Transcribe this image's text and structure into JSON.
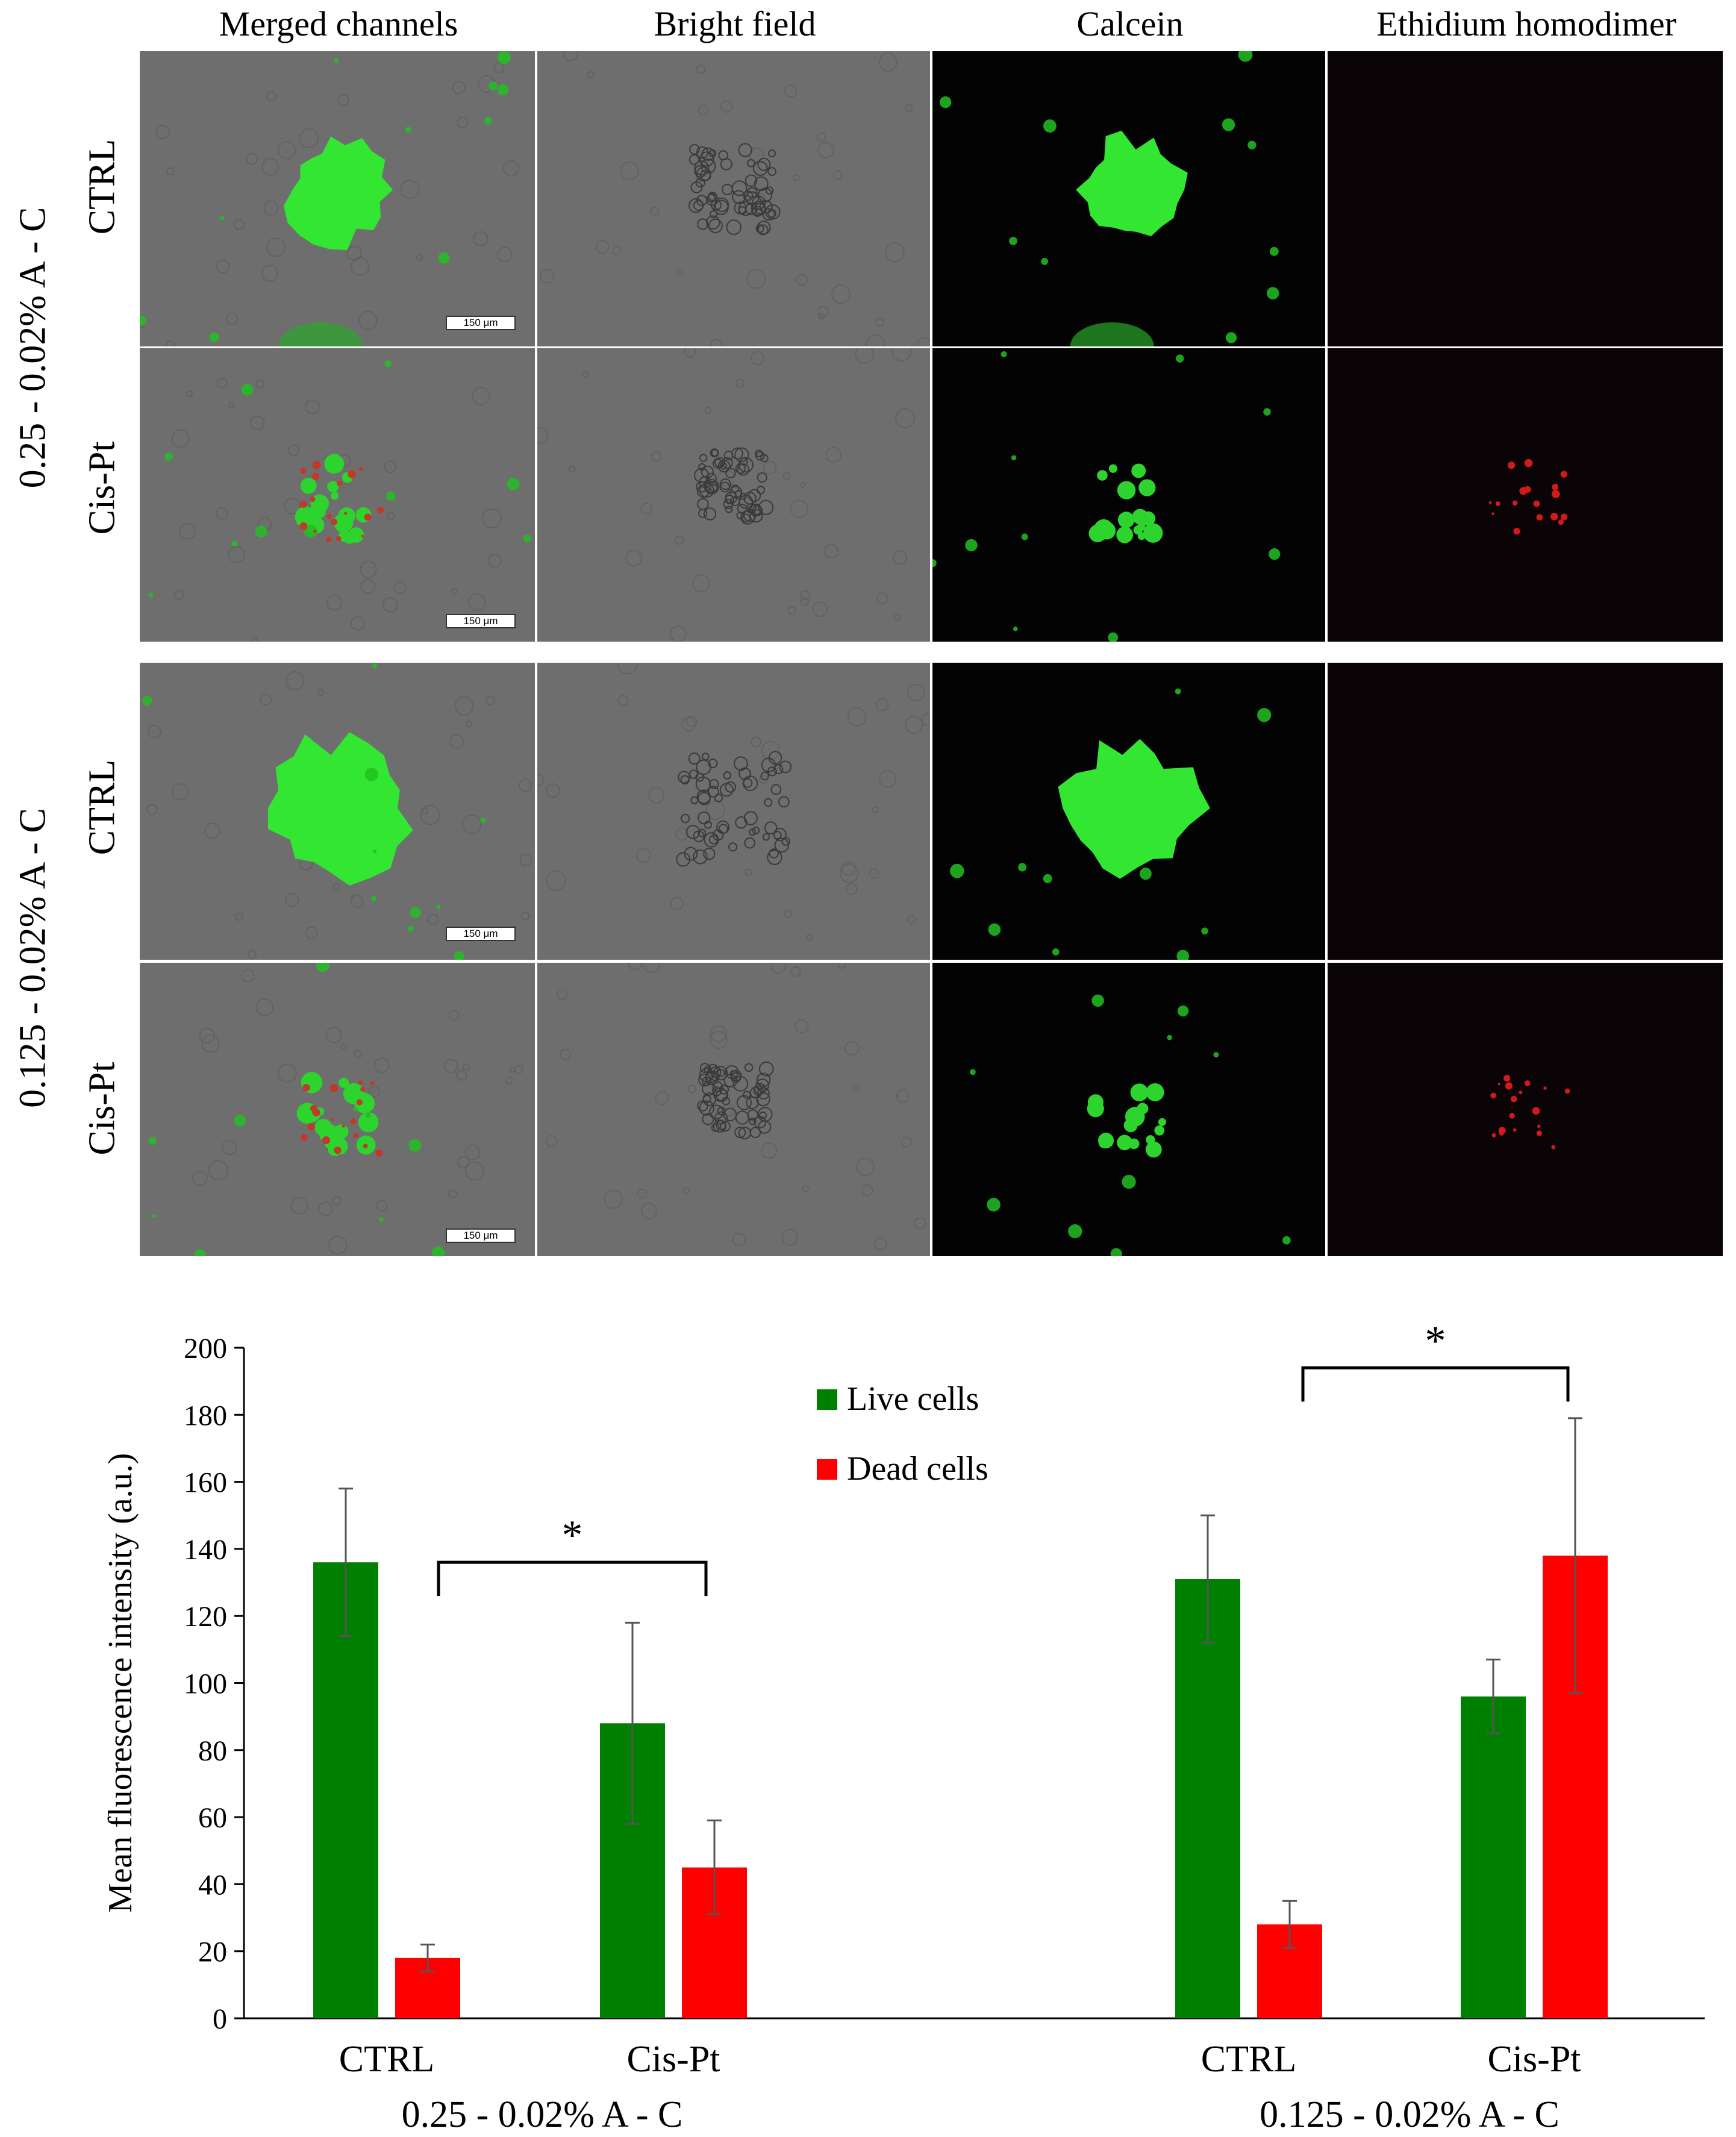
{
  "figure": {
    "column_headers": [
      "Merged channels",
      "Bright field",
      "Calcein",
      "Ethidium homodimer"
    ],
    "row_groups": [
      {
        "label": "0.25 - 0.02% A - C",
        "rows": [
          "CTRL",
          "Cis-Pt"
        ]
      },
      {
        "label": "0.125 - 0.02% A - C",
        "rows": [
          "CTRL",
          "Cis-Pt"
        ]
      }
    ],
    "scale_bar_label": "150 μm"
  },
  "chart_data": {
    "type": "bar",
    "ylabel": "Mean fluorescence intensity (a.u.)",
    "ylim": [
      0,
      200
    ],
    "yticks": [
      0,
      20,
      40,
      60,
      80,
      100,
      120,
      140,
      160,
      180,
      200
    ],
    "groups": [
      "0.25 - 0.02% A - C",
      "0.125 - 0.02% A - C"
    ],
    "categories": [
      "CTRL",
      "Cis-Pt",
      "CTRL",
      "Cis-Pt"
    ],
    "series": [
      {
        "name": "Live cells",
        "color": "#008000",
        "values": [
          136,
          88,
          131,
          96
        ],
        "errors": [
          22,
          30,
          19,
          11
        ]
      },
      {
        "name": "Dead cells",
        "color": "#ff0000",
        "values": [
          18,
          45,
          28,
          138
        ],
        "errors": [
          4,
          14,
          7,
          41
        ]
      }
    ],
    "legend_position": "top-center",
    "significance": [
      {
        "group": 0,
        "label": "*"
      },
      {
        "group": 1,
        "label": "*"
      }
    ]
  }
}
